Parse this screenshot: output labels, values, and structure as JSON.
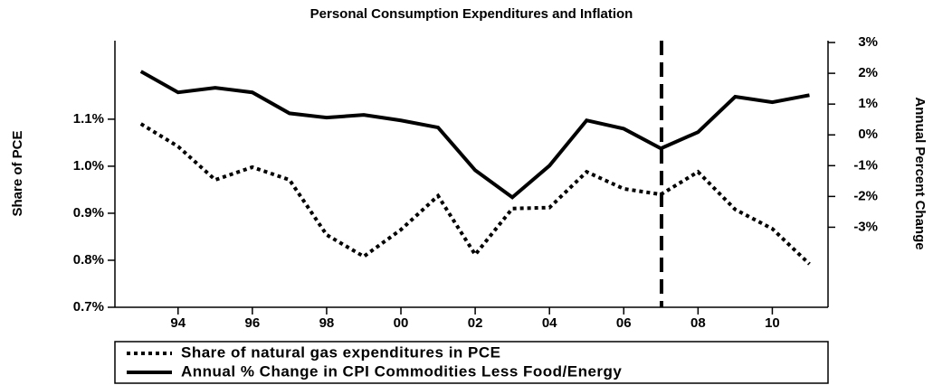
{
  "chart_data": {
    "type": "line",
    "title": "Personal Consumption Expenditures and Inflation",
    "y_label": "Share of PCE",
    "y2_label": "Annual Percent Change",
    "x": [
      1993,
      1994,
      1995,
      1996,
      1997,
      1998,
      1999,
      2000,
      2001,
      2002,
      2003,
      2004,
      2005,
      2006,
      2007,
      2008,
      2009,
      2010,
      2011
    ],
    "xlim": [
      1992.3,
      2011.5
    ],
    "xticks": [
      {
        "value": 1994,
        "label": "94"
      },
      {
        "value": 1996,
        "label": "96"
      },
      {
        "value": 1998,
        "label": "98"
      },
      {
        "value": 2000,
        "label": "00"
      },
      {
        "value": 2002,
        "label": "02"
      },
      {
        "value": 2004,
        "label": "04"
      },
      {
        "value": 2006,
        "label": "06"
      },
      {
        "value": 2008,
        "label": "08"
      },
      {
        "value": 2010,
        "label": "10"
      }
    ],
    "ylim": [
      0.7,
      1.267
    ],
    "yticks": [
      {
        "value": 0.7,
        "label": "0.7%"
      },
      {
        "value": 0.8,
        "label": "0.8%"
      },
      {
        "value": 0.9,
        "label": "0.9%"
      },
      {
        "value": 1.0,
        "label": "1.0%"
      },
      {
        "value": 1.1,
        "label": "1.1%"
      }
    ],
    "y2lim": [
      -5.6,
      3.06
    ],
    "y2ticks": [
      {
        "value": 3,
        "label": "3%"
      },
      {
        "value": 2,
        "label": "2%"
      },
      {
        "value": 1,
        "label": "1%"
      },
      {
        "value": 0,
        "label": "0%"
      },
      {
        "value": -1,
        "label": "-1%"
      },
      {
        "value": -2,
        "label": "-2%"
      },
      {
        "value": -3,
        "label": "-3%"
      }
    ],
    "series": [
      {
        "name": "Share of natural gas expenditures in PCE",
        "color": "#000000",
        "dash": "dotted",
        "values": [
          1.09,
          1.042,
          0.971,
          0.998,
          0.971,
          0.854,
          0.808,
          0.865,
          0.937,
          0.812,
          0.91,
          0.912,
          0.988,
          0.952,
          0.94,
          0.988,
          0.908,
          0.867,
          0.792
        ]
      },
      {
        "name": "Annual % Change in CPI Commodities Less Food/Energy",
        "color": "#000000",
        "dash": "solid",
        "axis": "y2",
        "values": [
          2.06,
          1.38,
          1.53,
          1.38,
          0.7,
          0.56,
          0.65,
          0.47,
          0.24,
          -1.15,
          -2.03,
          -1.0,
          0.47,
          0.2,
          -0.44,
          0.09,
          1.24,
          1.06,
          1.29
        ]
      }
    ]
  }
}
